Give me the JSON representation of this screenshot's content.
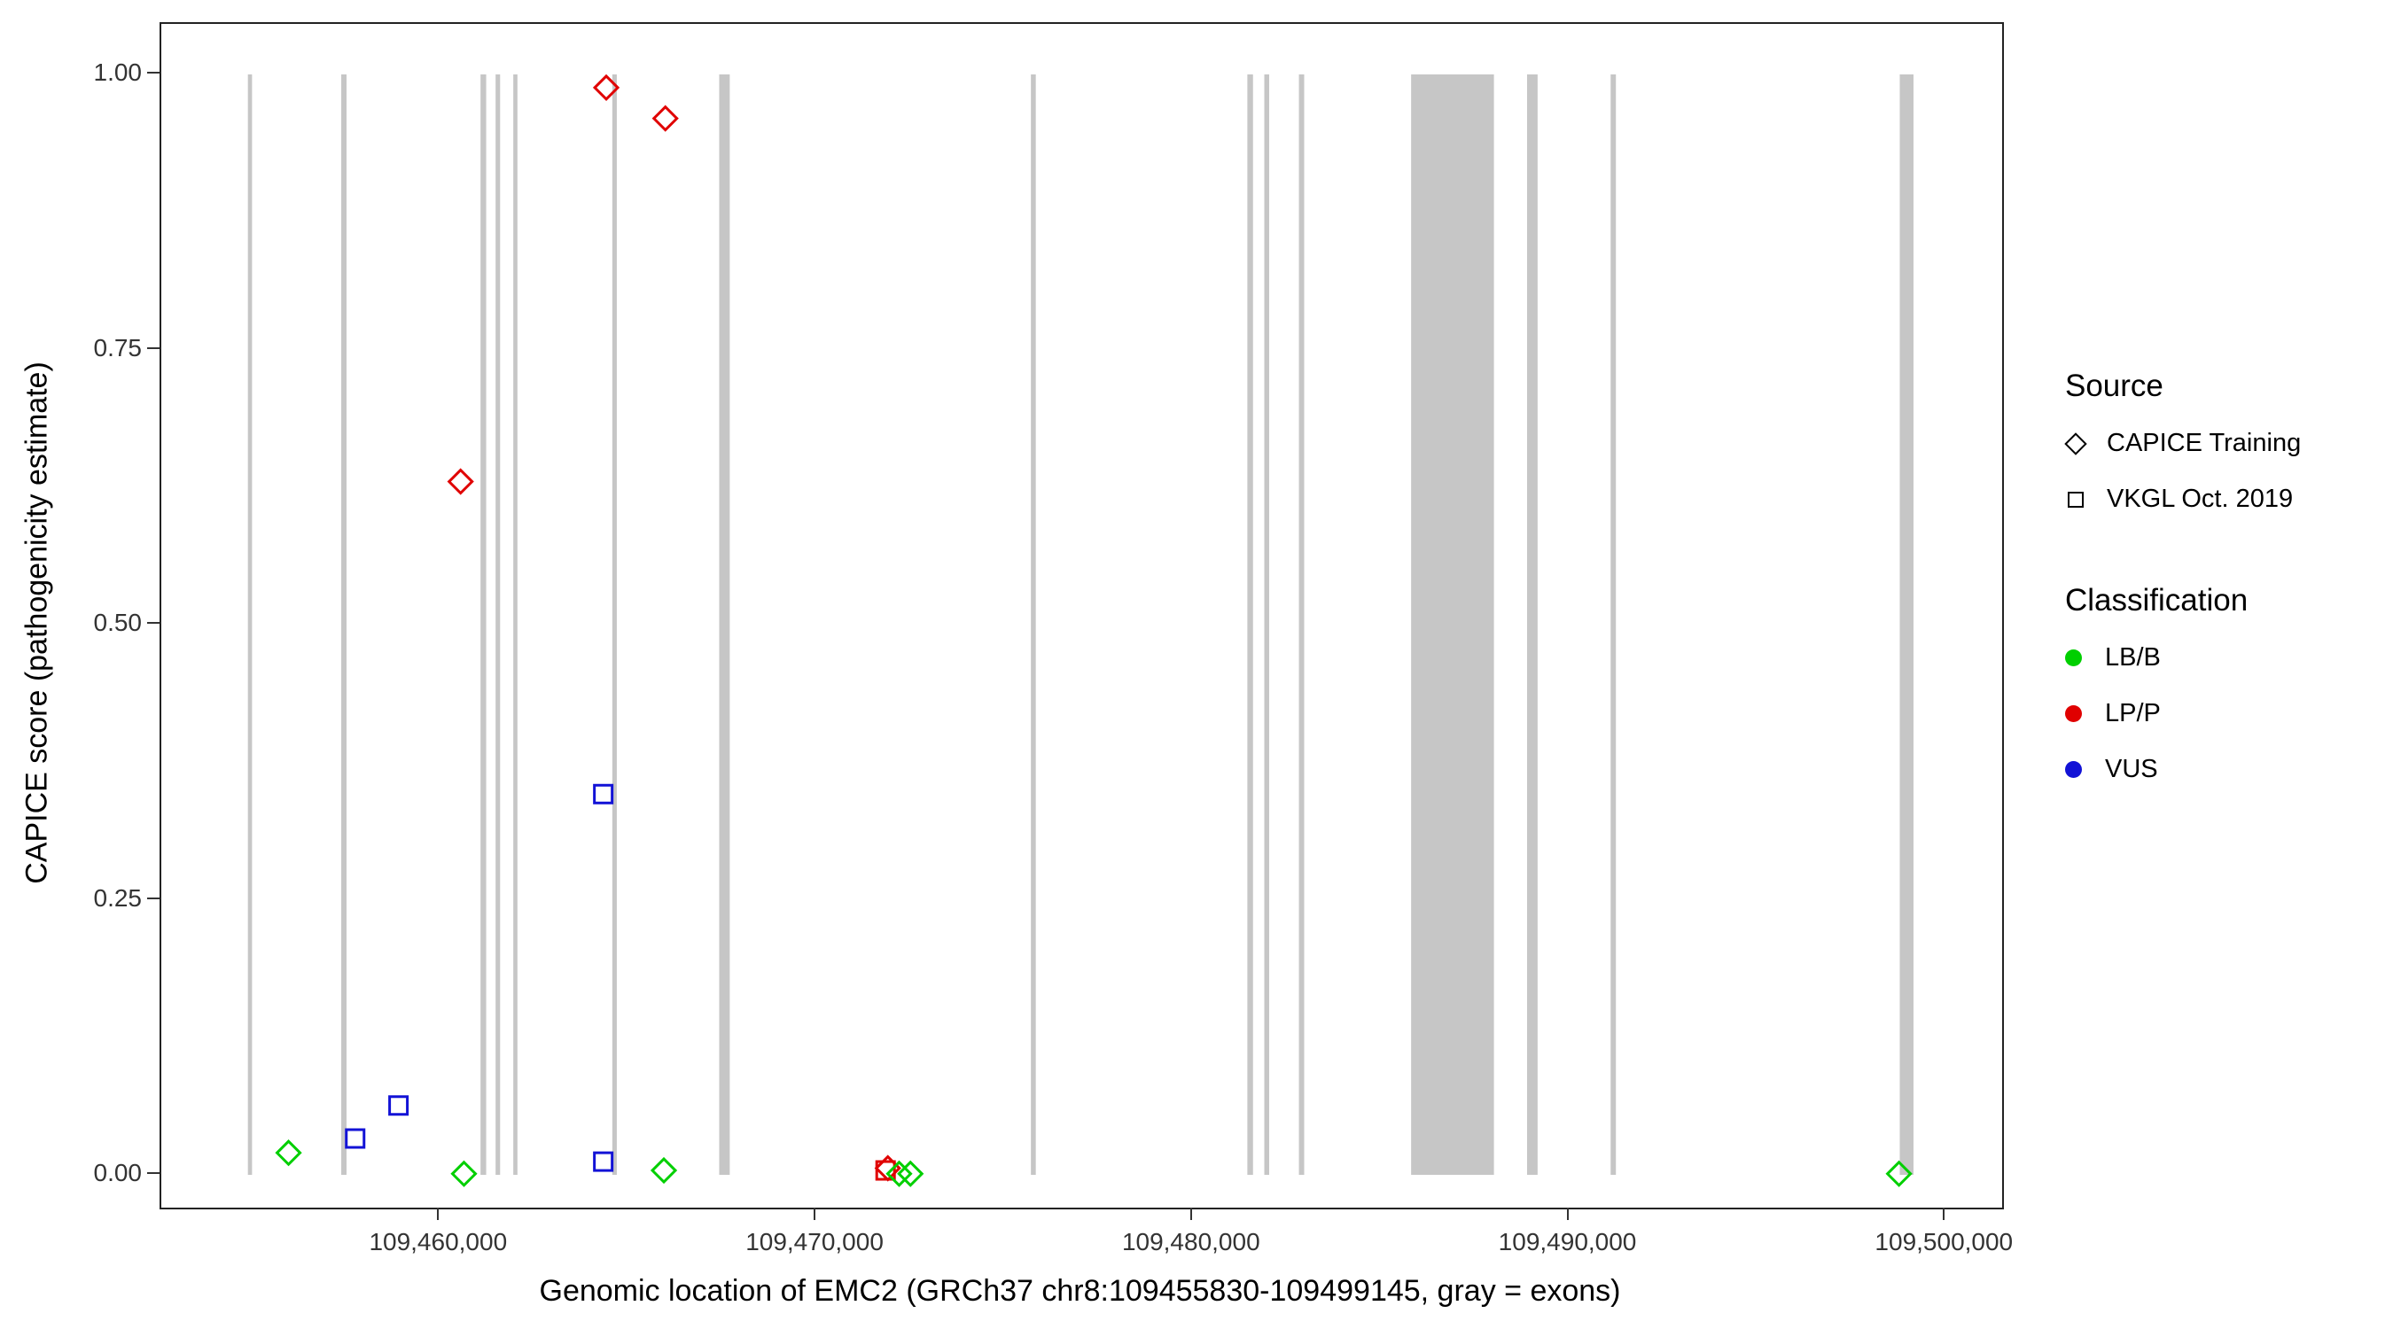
{
  "chart_data": {
    "type": "scatter",
    "title": "",
    "xlabel": "Genomic location of EMC2 (GRCh37 chr8:109455830-109499145, gray = exons)",
    "ylabel": "CAPICE score (pathogenicity estimate)",
    "xlim": [
      109452600,
      109501500
    ],
    "ylim": [
      0,
      1
    ],
    "grid": false,
    "legend_position": "right",
    "x_ticks": [
      {
        "value": 109460000,
        "label": "109,460,000"
      },
      {
        "value": 109470000,
        "label": "109,470,000"
      },
      {
        "value": 109480000,
        "label": "109,480,000"
      },
      {
        "value": 109490000,
        "label": "109,490,000"
      },
      {
        "value": 109500000,
        "label": "109,500,000"
      }
    ],
    "y_ticks": [
      {
        "value": 0.0,
        "label": "0.00"
      },
      {
        "value": 0.25,
        "label": "0.25"
      },
      {
        "value": 0.5,
        "label": "0.50"
      },
      {
        "value": 0.75,
        "label": "0.75"
      },
      {
        "value": 1.0,
        "label": "1.00"
      }
    ],
    "exon_color": "#c6c6c6",
    "exons": [
      [
        109454900,
        109455010
      ],
      [
        109457380,
        109457520
      ],
      [
        109461080,
        109461230
      ],
      [
        109461480,
        109461600
      ],
      [
        109461950,
        109462060
      ],
      [
        109464580,
        109464700
      ],
      [
        109467420,
        109467700
      ],
      [
        109475700,
        109475830
      ],
      [
        109481450,
        109481600
      ],
      [
        109481900,
        109482030
      ],
      [
        109482820,
        109482960
      ],
      [
        109485800,
        109488000
      ],
      [
        109488880,
        109489160
      ],
      [
        109491100,
        109491240
      ],
      [
        109498780,
        109499145
      ]
    ],
    "colors": {
      "LB/B": "#00cf00",
      "LP/P": "#e00000",
      "VUS": "#1212d6"
    },
    "shapes": {
      "CAPICE Training": "diamond",
      "VKGL Oct. 2019": "square"
    },
    "points": [
      {
        "x": 109455980,
        "y": 0.02,
        "source": "CAPICE Training",
        "classification": "LB/B"
      },
      {
        "x": 109457750,
        "y": 0.033,
        "source": "VKGL Oct. 2019",
        "classification": "VUS"
      },
      {
        "x": 109458900,
        "y": 0.063,
        "source": "VKGL Oct. 2019",
        "classification": "VUS"
      },
      {
        "x": 109460550,
        "y": 0.63,
        "source": "CAPICE Training",
        "classification": "LP/P"
      },
      {
        "x": 109460640,
        "y": 0.001,
        "source": "CAPICE Training",
        "classification": "LB/B"
      },
      {
        "x": 109464420,
        "y": 0.988,
        "source": "CAPICE Training",
        "classification": "LP/P"
      },
      {
        "x": 109464340,
        "y": 0.346,
        "source": "VKGL Oct. 2019",
        "classification": "VUS"
      },
      {
        "x": 109464340,
        "y": 0.012,
        "source": "VKGL Oct. 2019",
        "classification": "VUS"
      },
      {
        "x": 109465950,
        "y": 0.004,
        "source": "CAPICE Training",
        "classification": "LB/B"
      },
      {
        "x": 109465990,
        "y": 0.96,
        "source": "CAPICE Training",
        "classification": "LP/P"
      },
      {
        "x": 109471840,
        "y": 0.004,
        "source": "VKGL Oct. 2019",
        "classification": "LP/P"
      },
      {
        "x": 109471900,
        "y": 0.006,
        "source": "CAPICE Training",
        "classification": "LP/P"
      },
      {
        "x": 109472200,
        "y": 0.001,
        "source": "CAPICE Training",
        "classification": "LB/B"
      },
      {
        "x": 109472500,
        "y": 0.001,
        "source": "CAPICE Training",
        "classification": "LB/B"
      },
      {
        "x": 109498760,
        "y": 0.001,
        "source": "CAPICE Training",
        "classification": "LB/B"
      }
    ]
  },
  "legend": {
    "source": {
      "title": "Source",
      "items": [
        {
          "label": "CAPICE Training",
          "shape": "diamond"
        },
        {
          "label": "VKGL Oct. 2019",
          "shape": "square"
        }
      ]
    },
    "classification": {
      "title": "Classification",
      "items": [
        {
          "label": "LB/B",
          "color": "#00cf00"
        },
        {
          "label": "LP/P",
          "color": "#e00000"
        },
        {
          "label": "VUS",
          "color": "#1212d6"
        }
      ]
    }
  }
}
